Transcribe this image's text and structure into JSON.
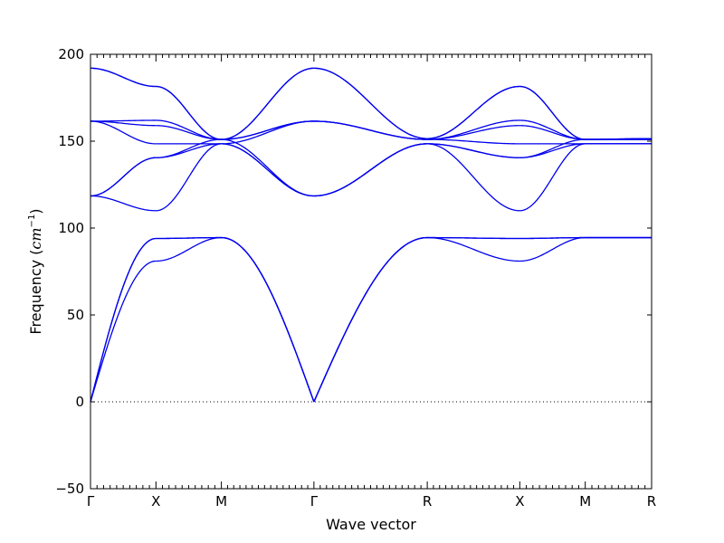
{
  "chart_data": {
    "type": "line",
    "title": "",
    "xlabel": "Wave vector",
    "ylabel_prefix": "Frequency (",
    "ylabel_unit_base": "cm",
    "ylabel_unit_exp": "−1",
    "ylabel_suffix": ")",
    "ylim": [
      -50,
      200
    ],
    "yticks": [
      -50,
      0,
      50,
      100,
      150,
      200
    ],
    "ytick_labels": [
      "−50",
      "0",
      "50",
      "100",
      "150",
      "200"
    ],
    "zero_line": true,
    "grid": false,
    "line_color": "#0000ee",
    "high_symmetry_points": [
      {
        "label": "Γ",
        "x": 0.0
      },
      {
        "label": "X",
        "x": 0.5
      },
      {
        "label": "M",
        "x": 1.0
      },
      {
        "label": "Γ",
        "x": 1.707
      },
      {
        "label": "R",
        "x": 2.573
      },
      {
        "label": "X",
        "x": 3.28
      },
      {
        "label": "M",
        "x": 3.78
      },
      {
        "label": "R",
        "x": 4.287
      }
    ],
    "segments": [
      {
        "from": "Γ",
        "to": "X",
        "bands": [
          [
            0,
            81
          ],
          [
            0,
            94
          ],
          [
            0,
            94
          ],
          [
            118.5,
            110
          ],
          [
            118.5,
            140.5
          ],
          [
            118.5,
            140.5
          ],
          [
            161.5,
            148.5
          ],
          [
            161.5,
            159
          ],
          [
            161.5,
            162
          ],
          [
            192,
            181.5
          ],
          [
            192,
            181.5
          ]
        ]
      },
      {
        "from": "X",
        "to": "M",
        "bands": [
          [
            81,
            94.5
          ],
          [
            94,
            94.5
          ],
          [
            94,
            94.5
          ],
          [
            110,
            148.5
          ],
          [
            140.5,
            148.5
          ],
          [
            140.5,
            151
          ],
          [
            148.5,
            148.5
          ],
          [
            159,
            151
          ],
          [
            162,
            151
          ],
          [
            181.5,
            151
          ],
          [
            181.5,
            151
          ]
        ]
      },
      {
        "from": "M",
        "to": "Γ",
        "bands": [
          [
            94.5,
            0
          ],
          [
            94.5,
            0
          ],
          [
            94.5,
            0
          ],
          [
            148.5,
            118.5
          ],
          [
            148.5,
            118.5
          ],
          [
            151,
            118.5
          ],
          [
            148.5,
            161.5
          ],
          [
            151,
            161.5
          ],
          [
            151,
            161.5
          ],
          [
            151,
            192
          ],
          [
            151,
            192
          ]
        ]
      },
      {
        "from": "Γ",
        "to": "R",
        "bands": [
          [
            0,
            94.5
          ],
          [
            0,
            94.5
          ],
          [
            0,
            94.5
          ],
          [
            118.5,
            148.5
          ],
          [
            118.5,
            148.5
          ],
          [
            118.5,
            148.5
          ],
          [
            161.5,
            151
          ],
          [
            161.5,
            151
          ],
          [
            161.5,
            151
          ],
          [
            192,
            151.5
          ],
          [
            192,
            151.5
          ]
        ]
      },
      {
        "from": "R",
        "to": "X",
        "bands": [
          [
            94.5,
            81
          ],
          [
            94.5,
            94
          ],
          [
            94.5,
            94
          ],
          [
            148.5,
            110
          ],
          [
            148.5,
            140.5
          ],
          [
            148.5,
            140.5
          ],
          [
            151,
            148.5
          ],
          [
            151,
            159
          ],
          [
            151,
            162
          ],
          [
            151.5,
            181.5
          ],
          [
            151.5,
            181.5
          ]
        ]
      },
      {
        "from": "X",
        "to": "M",
        "bands": [
          [
            81,
            94.5
          ],
          [
            94,
            94.5
          ],
          [
            94,
            94.5
          ],
          [
            110,
            148.5
          ],
          [
            140.5,
            148.5
          ],
          [
            140.5,
            151
          ],
          [
            148.5,
            148.5
          ],
          [
            159,
            151
          ],
          [
            162,
            151
          ],
          [
            181.5,
            151
          ],
          [
            181.5,
            151
          ]
        ]
      },
      {
        "from": "M",
        "to": "R",
        "bands": [
          [
            94.5,
            94.5
          ],
          [
            94.5,
            94.5
          ],
          [
            94.5,
            94.5
          ],
          [
            148.5,
            148.5
          ],
          [
            148.5,
            148.5
          ],
          [
            151,
            151
          ],
          [
            148.5,
            148.5
          ],
          [
            151,
            151
          ],
          [
            151,
            151
          ],
          [
            151,
            151.5
          ],
          [
            151,
            151.5
          ]
        ]
      }
    ]
  }
}
